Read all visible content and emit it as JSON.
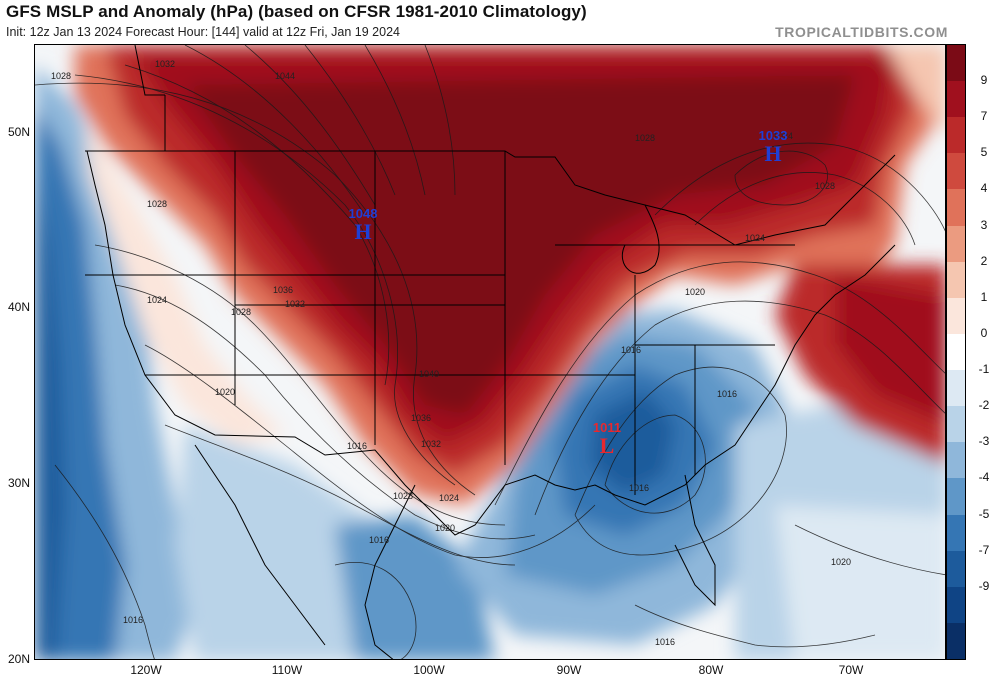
{
  "header": {
    "title": "GFS MSLP and Anomaly (hPa) (based on CFSR 1981-2010 Climatology)",
    "subtitle": "Init: 12z Jan 13 2024   Forecast Hour: [144]   valid at 12z Fri, Jan 19 2024",
    "brand": "TROPICALTIDBITS.COM"
  },
  "axes": {
    "lat_labels": [
      "50N",
      "40N",
      "30N",
      "20N"
    ],
    "lon_labels": [
      "120W",
      "110W",
      "100W",
      "90W",
      "80W",
      "70W"
    ]
  },
  "colorbar": {
    "labels": [
      "9",
      "7",
      "5",
      "4",
      "3",
      "2",
      "1",
      "0",
      "-1",
      "-2",
      "-3",
      "-4",
      "-5",
      "-7",
      "-9"
    ],
    "colors": [
      "#7b0b16",
      "#a0101e",
      "#bb2a2a",
      "#cf4a3e",
      "#e0725a",
      "#eb9b80",
      "#f5c6b0",
      "#fbe6dc",
      "#ffffff",
      "#dde9f3",
      "#b9d3e8",
      "#8fb7da",
      "#5f97c8",
      "#3576b4",
      "#1d5b9c",
      "#0f4485",
      "#0a2f66"
    ]
  },
  "pressure_systems": [
    {
      "type": "H",
      "value": "1048",
      "color": "#1f3fd6"
    },
    {
      "type": "H",
      "value": "1033",
      "color": "#1f3fd6"
    },
    {
      "type": "L",
      "value": "1011",
      "color": "#e8282e"
    }
  ],
  "isobar_labels": [
    "1028",
    "1032",
    "1044",
    "1028",
    "1028",
    "1024",
    "1024",
    "1036",
    "1032",
    "1028",
    "1020",
    "1040",
    "1036",
    "1032",
    "1028",
    "1024",
    "1020",
    "1016",
    "1020",
    "1016",
    "1016",
    "1016",
    "1016",
    "1016",
    "1024",
    "1020",
    "1016",
    "1028"
  ]
}
